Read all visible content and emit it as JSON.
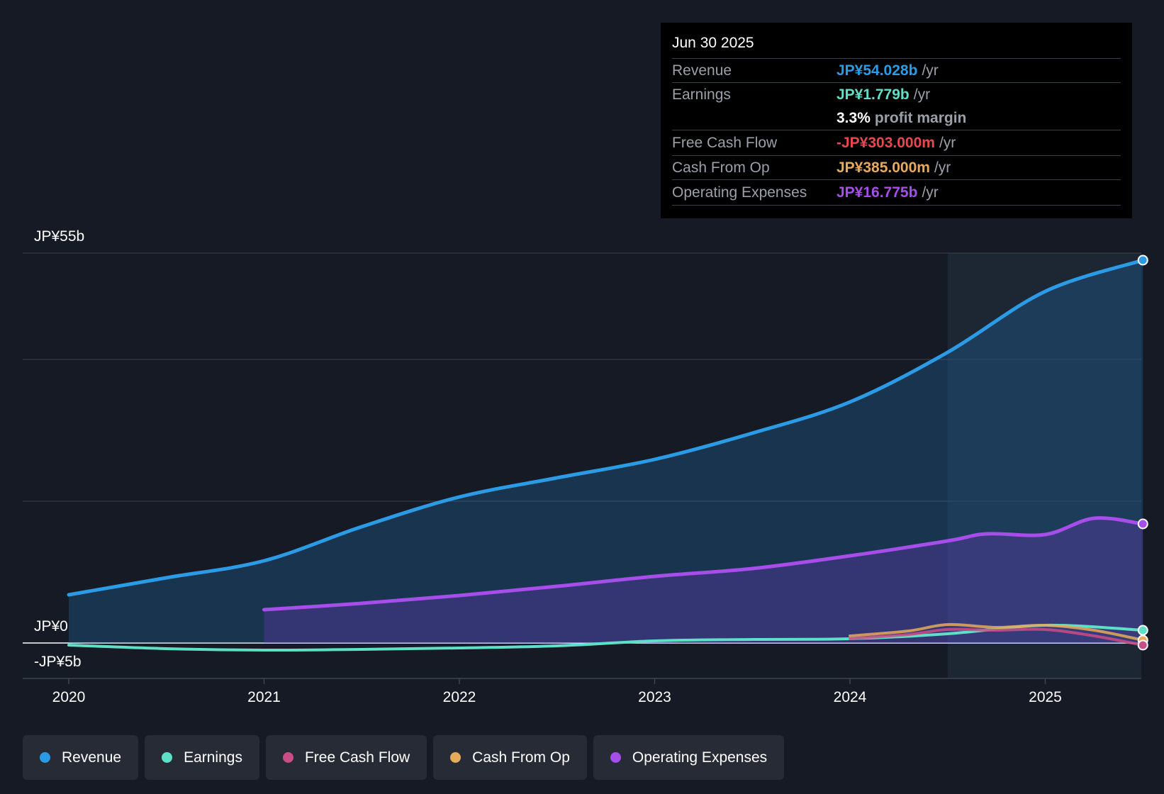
{
  "chart_data": {
    "type": "area",
    "x_ticks": [
      "2020",
      "2021",
      "2022",
      "2023",
      "2024",
      "2025"
    ],
    "y_labels": {
      "top": "JP¥55b",
      "zero": "JP¥0",
      "bottom": "-JP¥5b"
    },
    "ylim": [
      -5,
      55
    ],
    "xlim": [
      2019.76,
      2025.5
    ],
    "highlight_from": 2024.5,
    "colors": {
      "revenue": "#2b9be6",
      "earnings": "#5ee0c8",
      "free_cash_flow": "#c94d86",
      "cash_from_op": "#e6aa5a",
      "operating_expenses": "#a64dea"
    },
    "series": [
      {
        "key": "revenue",
        "name": "Revenue",
        "x": [
          2020,
          2020.5,
          2021,
          2021.5,
          2022,
          2022.5,
          2023,
          2023.5,
          2024,
          2024.5,
          2025,
          2025.5
        ],
        "values": [
          6.8,
          9.2,
          11.6,
          16.4,
          20.6,
          23.3,
          25.9,
          29.6,
          34.0,
          41.0,
          49.6,
          54.0
        ]
      },
      {
        "key": "operating_expenses",
        "name": "Operating Expenses",
        "x": [
          2021,
          2021.5,
          2022,
          2022.5,
          2023,
          2023.5,
          2024,
          2024.5,
          2024.7,
          2025,
          2025.25,
          2025.5
        ],
        "values": [
          4.7,
          5.6,
          6.7,
          8.0,
          9.4,
          10.5,
          12.3,
          14.4,
          15.4,
          15.3,
          17.6,
          16.8
        ]
      },
      {
        "key": "earnings",
        "name": "Earnings",
        "x": [
          2020,
          2020.5,
          2021,
          2021.5,
          2022,
          2022.5,
          2023,
          2023.5,
          2024,
          2024.5,
          2025,
          2025.5
        ],
        "values": [
          -0.3,
          -0.8,
          -1.0,
          -0.9,
          -0.7,
          -0.4,
          0.3,
          0.5,
          0.6,
          1.3,
          2.5,
          1.8
        ]
      },
      {
        "key": "cash_from_op",
        "name": "Cash From Op",
        "x": [
          2024,
          2024.3,
          2024.5,
          2024.75,
          2025,
          2025.25,
          2025.5
        ],
        "values": [
          1.0,
          1.7,
          2.6,
          2.2,
          2.5,
          1.8,
          0.4
        ]
      },
      {
        "key": "free_cash_flow",
        "name": "Free Cash Flow",
        "x": [
          2024,
          2024.3,
          2024.5,
          2024.75,
          2025,
          2025.25,
          2025.5
        ],
        "values": [
          0.6,
          1.2,
          1.9,
          1.8,
          1.9,
          1.0,
          -0.3
        ]
      }
    ]
  },
  "tooltip": {
    "date": "Jun 30 2025",
    "revenue": {
      "label": "Revenue",
      "value": "JP¥54.028b",
      "unit": "/yr"
    },
    "earnings": {
      "label": "Earnings",
      "value": "JP¥1.779b",
      "unit": "/yr"
    },
    "profit_margin": {
      "value": "3.3%",
      "text": "profit margin"
    },
    "free_cash_flow": {
      "label": "Free Cash Flow",
      "value": "-JP¥303.000m",
      "unit": "/yr",
      "color": "#e5484d"
    },
    "cash_from_op": {
      "label": "Cash From Op",
      "value": "JP¥385.000m",
      "unit": "/yr"
    },
    "operating_expenses": {
      "label": "Operating Expenses",
      "value": "JP¥16.775b",
      "unit": "/yr"
    }
  },
  "legend": [
    {
      "label": "Revenue",
      "key": "revenue"
    },
    {
      "label": "Earnings",
      "key": "earnings"
    },
    {
      "label": "Free Cash Flow",
      "key": "free_cash_flow"
    },
    {
      "label": "Cash From Op",
      "key": "cash_from_op"
    },
    {
      "label": "Operating Expenses",
      "key": "operating_expenses"
    }
  ]
}
